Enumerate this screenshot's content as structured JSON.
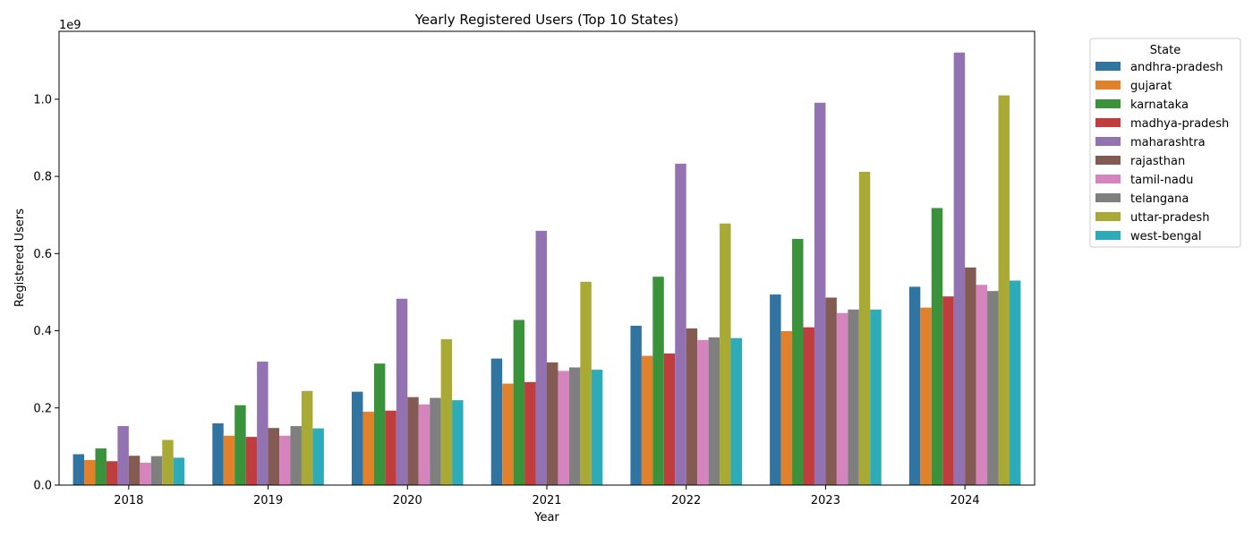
{
  "chart_data": {
    "type": "bar",
    "title": "Yearly Registered Users (Top 10 States)",
    "xlabel": "Year",
    "ylabel": "Registered Users",
    "scale_label": "1e9",
    "categories": [
      "2018",
      "2019",
      "2020",
      "2021",
      "2022",
      "2023",
      "2024"
    ],
    "ylim": [
      0,
      1.176
    ],
    "yticks": [
      0.0,
      0.2,
      0.4,
      0.6,
      0.8,
      1.0
    ],
    "ytick_labels": [
      "0.0",
      "0.2",
      "0.4",
      "0.6",
      "0.8",
      "1.0"
    ],
    "grid": false,
    "legend": {
      "title": "State",
      "placement": "outside-right"
    },
    "series": [
      {
        "name": "andhra-pradesh",
        "color": "#3274a1",
        "values": [
          0.08,
          0.16,
          0.242,
          0.328,
          0.413,
          0.494,
          0.514
        ]
      },
      {
        "name": "gujarat",
        "color": "#e1812c",
        "values": [
          0.065,
          0.128,
          0.19,
          0.263,
          0.335,
          0.399,
          0.46
        ]
      },
      {
        "name": "karnataka",
        "color": "#3a923a",
        "values": [
          0.095,
          0.207,
          0.315,
          0.428,
          0.54,
          0.638,
          0.718
        ]
      },
      {
        "name": "madhya-pradesh",
        "color": "#c03d3e",
        "values": [
          0.062,
          0.125,
          0.193,
          0.267,
          0.341,
          0.409,
          0.489
        ]
      },
      {
        "name": "maharashtra",
        "color": "#9372b2",
        "values": [
          0.153,
          0.32,
          0.483,
          0.659,
          0.833,
          0.991,
          1.121
        ]
      },
      {
        "name": "rajasthan",
        "color": "#845b53",
        "values": [
          0.076,
          0.148,
          0.228,
          0.318,
          0.406,
          0.486,
          0.564
        ]
      },
      {
        "name": "tamil-nadu",
        "color": "#d684bd",
        "values": [
          0.058,
          0.128,
          0.209,
          0.296,
          0.376,
          0.446,
          0.519
        ]
      },
      {
        "name": "telangana",
        "color": "#7f7f7f",
        "values": [
          0.075,
          0.153,
          0.226,
          0.305,
          0.383,
          0.455,
          0.503
        ]
      },
      {
        "name": "uttar-pradesh",
        "color": "#a9aa35",
        "values": [
          0.117,
          0.244,
          0.378,
          0.527,
          0.678,
          0.812,
          1.01
        ]
      },
      {
        "name": "west-bengal",
        "color": "#2eabb8",
        "values": [
          0.071,
          0.147,
          0.22,
          0.299,
          0.381,
          0.455,
          0.53
        ]
      }
    ]
  }
}
